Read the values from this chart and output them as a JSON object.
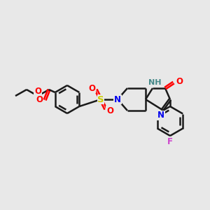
{
  "background_color": "#e8e8e8",
  "bond_color": "#1a1a1a",
  "atom_colors": {
    "O": "#ff0000",
    "N": "#0000ee",
    "S": "#cccc00",
    "F": "#cc44cc",
    "NH": "#448888",
    "C": "#1a1a1a"
  },
  "figsize": [
    3.0,
    3.0
  ],
  "dpi": 100,
  "xlim": [
    0,
    300
  ],
  "ylim": [
    0,
    300
  ]
}
